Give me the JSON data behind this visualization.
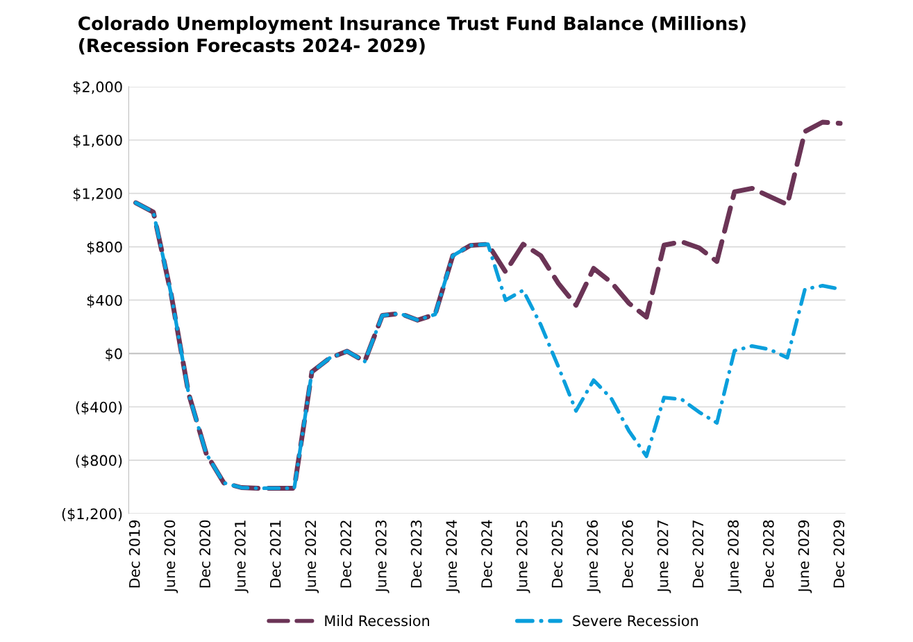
{
  "chart_data": {
    "type": "line",
    "title": "Colorado Unemployment Insurance Trust Fund Balance (Millions)\n(Recession Forecasts 2024- 2029)",
    "categories": [
      "Dec 2019",
      null,
      "June 2020",
      null,
      "Dec 2020",
      null,
      "June 2021",
      null,
      "Dec 2021",
      null,
      "June 2022",
      null,
      "Dec 2022",
      null,
      "June 2023",
      null,
      "Dec 2023",
      null,
      "June 2024",
      null,
      "Dec 2024",
      null,
      "June 2025",
      null,
      "Dec 2025",
      null,
      "June 2026",
      null,
      "Dec 2026",
      null,
      "June 2027",
      null,
      "Dec 2027",
      null,
      "June 2028",
      null,
      "Dec 2028",
      null,
      "June 2029",
      null,
      "Dec 2029"
    ],
    "series": [
      {
        "name": "Mild Recession",
        "color": "#6b3456",
        "line_style": "dashed",
        "values": [
          1130,
          1060,
          450,
          -300,
          -750,
          -970,
          -1005,
          -1010,
          -1010,
          -1010,
          -138,
          -35,
          17,
          -60,
          285,
          300,
          250,
          293,
          733,
          810,
          819,
          612,
          819,
          733,
          525,
          362,
          638,
          534,
          377,
          273,
          812,
          838,
          791,
          690,
          1212,
          1238,
          1177,
          1116,
          1664,
          1734,
          1725
        ]
      },
      {
        "name": "Severe Recession",
        "color": "#0a9fdc",
        "line_style": "dashdot",
        "values": [
          1130,
          1060,
          450,
          -300,
          -750,
          -970,
          -1005,
          -1010,
          -1010,
          -1010,
          -138,
          -35,
          17,
          -60,
          285,
          300,
          250,
          293,
          733,
          810,
          819,
          400,
          474,
          215,
          -100,
          -430,
          -200,
          -336,
          -579,
          -770,
          -330,
          -344,
          -440,
          -520,
          21,
          56,
          30,
          -31,
          482,
          508,
          482
        ]
      }
    ],
    "ylim": [
      -1200,
      2000
    ],
    "yticks": [
      {
        "value": -1200,
        "label": "($1,200)"
      },
      {
        "value": -800,
        "label": "($800)"
      },
      {
        "value": -400,
        "label": "($400)"
      },
      {
        "value": 0,
        "label": "$0"
      },
      {
        "value": 400,
        "label": "$400"
      },
      {
        "value": 800,
        "label": "$800"
      },
      {
        "value": 1200,
        "label": "$1,200"
      },
      {
        "value": 1600,
        "label": "$1,600"
      },
      {
        "value": 2000,
        "label": "$2,000"
      }
    ],
    "grid": "y",
    "legend": "bottom",
    "marker": "none"
  }
}
